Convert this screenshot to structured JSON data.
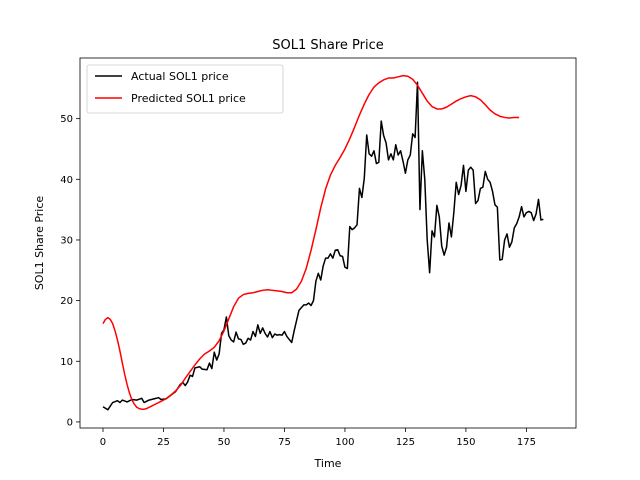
{
  "chart_data": {
    "type": "line",
    "title": "SOL1 Share Price",
    "xlabel": "Time",
    "ylabel": "SOL1 Share Price",
    "xlim": [
      -9.5,
      195.5
    ],
    "ylim": [
      -1,
      60
    ],
    "xticks": [
      0,
      25,
      50,
      75,
      100,
      125,
      150,
      175
    ],
    "yticks": [
      0,
      10,
      20,
      30,
      40,
      50
    ],
    "grid": false,
    "legend_position": "top-left",
    "series": [
      {
        "name": "Actual SOL1 price",
        "color": "#000000",
        "points": [
          [
            0,
            2.5
          ],
          [
            2,
            2.0
          ],
          [
            4,
            3.2
          ],
          [
            6,
            3.5
          ],
          [
            7,
            3.2
          ],
          [
            8,
            3.6
          ],
          [
            10,
            3.3
          ],
          [
            12,
            3.7
          ],
          [
            14,
            3.6
          ],
          [
            16,
            3.9
          ],
          [
            17,
            3.2
          ],
          [
            19,
            3.6
          ],
          [
            21,
            3.8
          ],
          [
            23,
            4.0
          ],
          [
            24,
            3.7
          ],
          [
            26,
            3.8
          ],
          [
            28,
            4.4
          ],
          [
            30,
            5.0
          ],
          [
            32,
            6.2
          ],
          [
            33,
            6.5
          ],
          [
            34,
            6.0
          ],
          [
            35,
            6.6
          ],
          [
            36,
            7.7
          ],
          [
            37,
            7.5
          ],
          [
            38,
            8.9
          ],
          [
            40,
            9.1
          ],
          [
            41,
            8.7
          ],
          [
            43,
            8.6
          ],
          [
            44,
            9.7
          ],
          [
            45,
            8.8
          ],
          [
            46,
            11.5
          ],
          [
            47,
            10.2
          ],
          [
            48,
            11.2
          ],
          [
            49,
            14.6
          ],
          [
            50,
            15.2
          ],
          [
            51,
            17.3
          ],
          [
            52,
            14.2
          ],
          [
            53,
            13.5
          ],
          [
            54,
            13.2
          ],
          [
            55,
            14.8
          ],
          [
            56,
            13.7
          ],
          [
            57,
            13.6
          ],
          [
            58,
            12.8
          ],
          [
            59,
            13.0
          ],
          [
            60,
            13.8
          ],
          [
            61,
            13.5
          ],
          [
            62,
            14.9
          ],
          [
            63,
            14.1
          ],
          [
            64,
            16.0
          ],
          [
            65,
            14.6
          ],
          [
            66,
            15.5
          ],
          [
            67,
            14.6
          ],
          [
            68,
            14.0
          ],
          [
            69,
            14.9
          ],
          [
            70,
            13.9
          ],
          [
            71,
            14.5
          ],
          [
            72,
            14.3
          ],
          [
            73,
            14.4
          ],
          [
            74,
            14.3
          ],
          [
            75,
            14.9
          ],
          [
            76,
            14.1
          ],
          [
            78,
            13.1
          ],
          [
            79,
            15.0
          ],
          [
            80,
            16.7
          ],
          [
            81,
            18.4
          ],
          [
            83,
            19.3
          ],
          [
            84,
            19.3
          ],
          [
            85,
            19.6
          ],
          [
            86,
            19.2
          ],
          [
            87,
            20.0
          ],
          [
            88,
            23.2
          ],
          [
            89,
            24.5
          ],
          [
            90,
            23.4
          ],
          [
            91,
            25.7
          ],
          [
            92,
            27.0
          ],
          [
            93,
            27.0
          ],
          [
            94,
            27.7
          ],
          [
            95,
            27.0
          ],
          [
            96,
            28.3
          ],
          [
            97,
            28.4
          ],
          [
            98,
            27.4
          ],
          [
            99,
            27.3
          ],
          [
            100,
            25.5
          ],
          [
            101,
            25.3
          ],
          [
            102,
            32.2
          ],
          [
            103,
            31.7
          ],
          [
            104,
            32.0
          ],
          [
            105,
            32.5
          ],
          [
            106,
            38.5
          ],
          [
            107,
            37.0
          ],
          [
            108,
            40.2
          ],
          [
            109,
            47.3
          ],
          [
            110,
            44.2
          ],
          [
            111,
            43.8
          ],
          [
            112,
            44.7
          ],
          [
            113,
            42.6
          ],
          [
            114,
            42.8
          ],
          [
            115,
            49.6
          ],
          [
            116,
            47.2
          ],
          [
            117,
            46.0
          ],
          [
            118,
            43.2
          ],
          [
            119,
            44.2
          ],
          [
            120,
            43.2
          ],
          [
            121,
            45.7
          ],
          [
            122,
            44.0
          ],
          [
            123,
            44.7
          ],
          [
            124,
            43.0
          ],
          [
            125,
            41.0
          ],
          [
            126,
            43.2
          ],
          [
            127,
            44.0
          ],
          [
            128,
            47.5
          ],
          [
            129,
            46.9
          ],
          [
            130,
            56.0
          ],
          [
            131,
            35.0
          ],
          [
            132,
            44.7
          ],
          [
            133,
            40.0
          ],
          [
            134,
            30.0
          ],
          [
            135,
            24.6
          ],
          [
            136,
            31.5
          ],
          [
            137,
            30.5
          ],
          [
            138,
            35.7
          ],
          [
            139,
            33.8
          ],
          [
            140,
            29.0
          ],
          [
            141,
            27.5
          ],
          [
            142,
            28.8
          ],
          [
            143,
            32.8
          ],
          [
            144,
            30.5
          ],
          [
            145,
            34.5
          ],
          [
            146,
            39.5
          ],
          [
            147,
            37.5
          ],
          [
            148,
            39.0
          ],
          [
            149,
            42.3
          ],
          [
            150,
            38.0
          ],
          [
            151,
            41.5
          ],
          [
            152,
            42.0
          ],
          [
            153,
            41.5
          ],
          [
            154,
            36.0
          ],
          [
            155,
            36.5
          ],
          [
            156,
            38.5
          ],
          [
            157,
            38.7
          ],
          [
            158,
            41.3
          ],
          [
            159,
            40.0
          ],
          [
            160,
            39.5
          ],
          [
            161,
            38.0
          ],
          [
            162,
            35.8
          ],
          [
            163,
            35.4
          ],
          [
            164,
            26.7
          ],
          [
            165,
            26.8
          ],
          [
            166,
            30.0
          ],
          [
            167,
            31.0
          ],
          [
            168,
            28.8
          ],
          [
            169,
            29.7
          ],
          [
            170,
            32.0
          ],
          [
            171,
            32.7
          ],
          [
            172,
            33.8
          ],
          [
            173,
            35.5
          ],
          [
            174,
            33.8
          ],
          [
            175,
            34.5
          ],
          [
            176,
            34.7
          ],
          [
            177,
            34.5
          ],
          [
            178,
            33.2
          ],
          [
            179,
            34.3
          ],
          [
            180,
            36.7
          ],
          [
            181,
            33.3
          ],
          [
            182,
            33.4
          ]
        ]
      },
      {
        "name": "Predicted SOL1 price",
        "color": "#ff0000",
        "points": [
          [
            0,
            16.2
          ],
          [
            1,
            16.9
          ],
          [
            2,
            17.2
          ],
          [
            3,
            16.9
          ],
          [
            4,
            16.2
          ],
          [
            5,
            15.0
          ],
          [
            6,
            13.5
          ],
          [
            7,
            11.7
          ],
          [
            8,
            9.7
          ],
          [
            9,
            7.8
          ],
          [
            10,
            6.1
          ],
          [
            11,
            4.7
          ],
          [
            12,
            3.6
          ],
          [
            13,
            2.9
          ],
          [
            14,
            2.4
          ],
          [
            15,
            2.2
          ],
          [
            16,
            2.1
          ],
          [
            17,
            2.1
          ],
          [
            18,
            2.2
          ],
          [
            19,
            2.4
          ],
          [
            20,
            2.6
          ],
          [
            22,
            3.0
          ],
          [
            24,
            3.4
          ],
          [
            26,
            3.8
          ],
          [
            28,
            4.4
          ],
          [
            30,
            5.1
          ],
          [
            32,
            6.0
          ],
          [
            34,
            7.2
          ],
          [
            36,
            8.3
          ],
          [
            38,
            9.4
          ],
          [
            40,
            10.4
          ],
          [
            42,
            11.2
          ],
          [
            44,
            11.7
          ],
          [
            46,
            12.3
          ],
          [
            48,
            13.4
          ],
          [
            50,
            15.0
          ],
          [
            52,
            17.0
          ],
          [
            54,
            19.0
          ],
          [
            56,
            20.4
          ],
          [
            58,
            21.0
          ],
          [
            60,
            21.2
          ],
          [
            62,
            21.3
          ],
          [
            64,
            21.5
          ],
          [
            66,
            21.7
          ],
          [
            68,
            21.8
          ],
          [
            70,
            21.7
          ],
          [
            72,
            21.6
          ],
          [
            74,
            21.5
          ],
          [
            76,
            21.3
          ],
          [
            78,
            21.3
          ],
          [
            80,
            21.9
          ],
          [
            82,
            23.2
          ],
          [
            84,
            25.3
          ],
          [
            86,
            28.3
          ],
          [
            88,
            31.7
          ],
          [
            90,
            35.3
          ],
          [
            92,
            38.4
          ],
          [
            94,
            40.7
          ],
          [
            96,
            42.3
          ],
          [
            98,
            43.6
          ],
          [
            100,
            45.0
          ],
          [
            102,
            46.7
          ],
          [
            104,
            48.6
          ],
          [
            106,
            50.6
          ],
          [
            108,
            52.4
          ],
          [
            110,
            54.0
          ],
          [
            112,
            55.2
          ],
          [
            114,
            55.9
          ],
          [
            116,
            56.4
          ],
          [
            118,
            56.7
          ],
          [
            120,
            56.7
          ],
          [
            122,
            56.9
          ],
          [
            124,
            57.1
          ],
          [
            126,
            57.0
          ],
          [
            128,
            56.5
          ],
          [
            130,
            55.5
          ],
          [
            132,
            54.2
          ],
          [
            134,
            52.9
          ],
          [
            136,
            52.0
          ],
          [
            138,
            51.6
          ],
          [
            140,
            51.6
          ],
          [
            142,
            51.9
          ],
          [
            144,
            52.4
          ],
          [
            146,
            52.9
          ],
          [
            148,
            53.3
          ],
          [
            150,
            53.6
          ],
          [
            152,
            53.8
          ],
          [
            154,
            53.6
          ],
          [
            156,
            53.1
          ],
          [
            158,
            52.3
          ],
          [
            160,
            51.4
          ],
          [
            162,
            50.8
          ],
          [
            164,
            50.4
          ],
          [
            166,
            50.2
          ],
          [
            168,
            50.1
          ],
          [
            170,
            50.2
          ],
          [
            172,
            50.2
          ]
        ]
      }
    ]
  }
}
